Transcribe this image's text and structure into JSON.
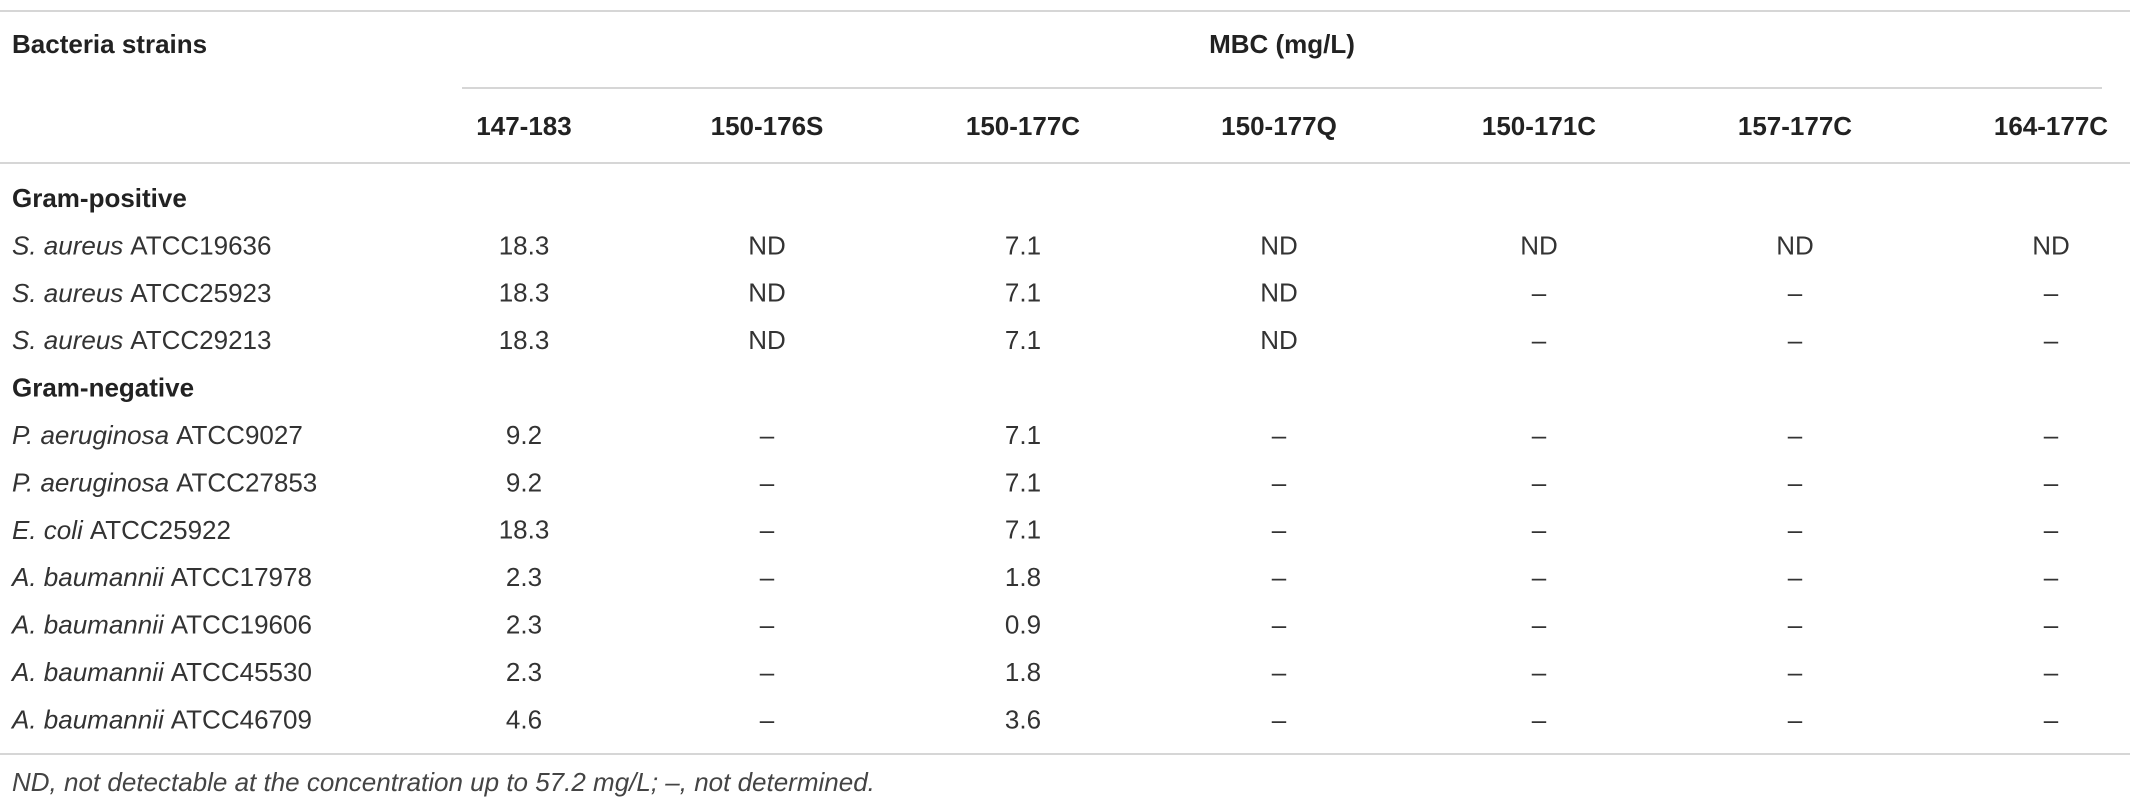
{
  "table": {
    "header": {
      "first": "Bacteria strains",
      "group": "MBC (mg/L)",
      "columns": [
        "147-183",
        "150-176S",
        "150-177C",
        "150-177Q",
        "150-171C",
        "157-177C",
        "164-177C"
      ]
    },
    "sections": [
      {
        "label": "Gram-positive",
        "rows": [
          {
            "species": "S. aureus",
            "strain": "ATCC19636",
            "values": [
              18.3,
              "ND",
              7.1,
              "ND",
              "ND",
              "ND",
              "ND"
            ]
          },
          {
            "species": "S. aureus",
            "strain": "ATCC25923",
            "values": [
              18.3,
              "ND",
              7.1,
              "ND",
              "–",
              "–",
              "–"
            ]
          },
          {
            "species": "S. aureus",
            "strain": "ATCC29213",
            "values": [
              18.3,
              "ND",
              7.1,
              "ND",
              "–",
              "–",
              "–"
            ]
          }
        ]
      },
      {
        "label": "Gram-negative",
        "rows": [
          {
            "species": "P. aeruginosa",
            "strain": "ATCC9027",
            "values": [
              9.2,
              "–",
              7.1,
              "–",
              "–",
              "–",
              "–"
            ]
          },
          {
            "species": "P. aeruginosa",
            "strain": "ATCC27853",
            "values": [
              9.2,
              "–",
              7.1,
              "–",
              "–",
              "–",
              "–"
            ]
          },
          {
            "species": "E. coli",
            "strain": "ATCC25922",
            "values": [
              18.3,
              "–",
              7.1,
              "–",
              "–",
              "–",
              "–"
            ]
          },
          {
            "species": "A. baumannii",
            "strain": "ATCC17978",
            "values": [
              2.3,
              "–",
              1.8,
              "–",
              "–",
              "–",
              "–"
            ]
          },
          {
            "species": "A. baumannii",
            "strain": "ATCC19606",
            "values": [
              2.3,
              "–",
              0.9,
              "–",
              "–",
              "–",
              "–"
            ]
          },
          {
            "species": "A. baumannii",
            "strain": "ATCC45530",
            "values": [
              2.3,
              "–",
              1.8,
              "–",
              "–",
              "–",
              "–"
            ]
          },
          {
            "species": "A. baumannii",
            "strain": "ATCC46709",
            "values": [
              4.6,
              "–",
              3.6,
              "–",
              "–",
              "–",
              "–"
            ]
          }
        ]
      }
    ]
  },
  "footnote": "ND, not detectable at the concentration up to 57.2 mg/L; –, not determined."
}
